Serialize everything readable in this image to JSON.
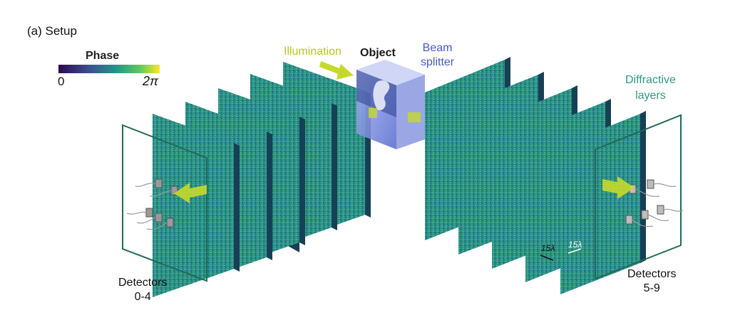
{
  "figure": {
    "title": "(a) Setup",
    "colorbar": {
      "label": "Phase",
      "min_label": "0",
      "max_label": "2π",
      "colors": [
        "#2b0a4e",
        "#3b4f8c",
        "#21908d",
        "#5cc863",
        "#fde725"
      ]
    },
    "labels": {
      "illumination": "Illumination",
      "object": "Object",
      "beam_line1": "Beam",
      "beam_line2": "splitter",
      "diffractive_line1": "Diffractive",
      "diffractive_line2": "layers",
      "detectors_left_line1": "Detectors",
      "detectors_left_line2": "0-4",
      "detectors_right_line1": "Detectors",
      "detectors_right_line2": "5-9",
      "scale_left": "15λ",
      "scale_right": "15λ"
    },
    "colors": {
      "layer": "#2a8f88",
      "layer_edge": "#173f56",
      "frame": "#1f6b55",
      "beam_splitter": "#7d8ee0",
      "arrow": "#c6d92a",
      "illumination_text": "#b8c81a",
      "beam_text": "#4a57c7",
      "diffractive_text": "#2f9a7e"
    }
  }
}
